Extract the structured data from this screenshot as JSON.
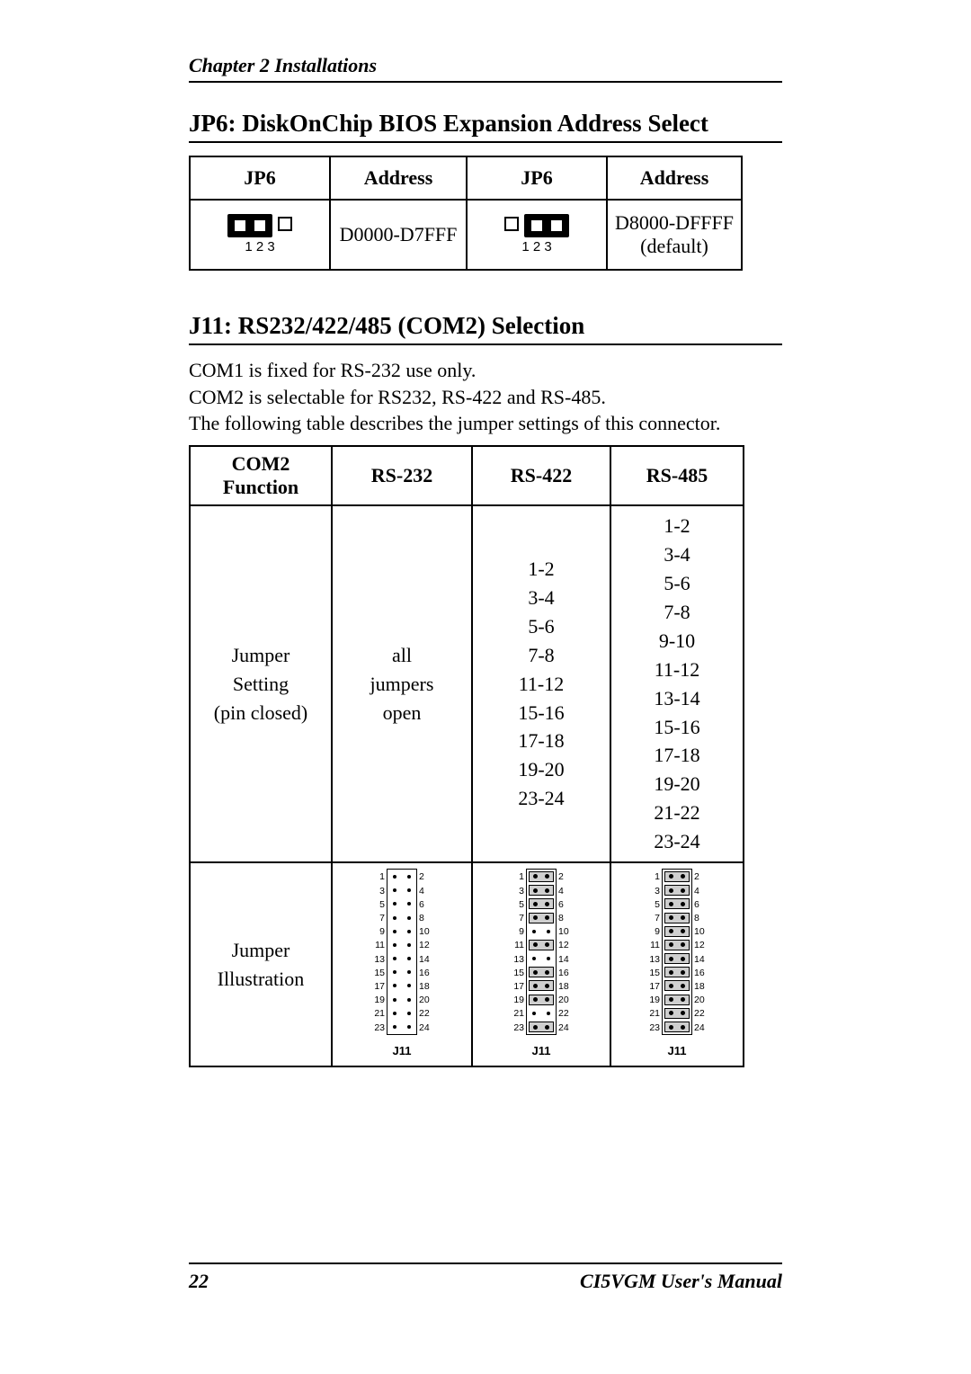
{
  "header": {
    "chapter": "Chapter 2  Installations"
  },
  "footer": {
    "page_number": "22",
    "manual": "CI5VGM User's Manual"
  },
  "jp6": {
    "title": "JP6: DiskOnChip BIOS Expansion Address Select",
    "headers": [
      "JP6",
      "Address",
      "JP6",
      "Address"
    ],
    "rows": [
      {
        "pins": "1  2  3",
        "cap_on": [
          1,
          2
        ],
        "address": "D0000-D7FFF",
        "pins2": "1  2  3",
        "cap_on2": [
          2,
          3
        ],
        "address2_line1": "D8000-DFFFF",
        "address2_line2": "(default)"
      }
    ],
    "border_color": "#000000",
    "font_size_header": 22,
    "font_size_cell": 22
  },
  "j11": {
    "title": "J11: RS232/422/485 (COM2) Selection",
    "intro_lines": [
      "COM1 is fixed for RS-232 use only.",
      "COM2 is selectable for RS232, RS-422 and RS-485.",
      "The following table describes the jumper settings of this connector."
    ],
    "headers": {
      "col1_line1": "COM2",
      "col1_line2": "Function",
      "col2": "RS-232",
      "col3": "RS-422",
      "col4": "RS-485"
    },
    "row_setting": {
      "label_line1": "Jumper",
      "label_line2": "Setting",
      "label_line3": "(pin closed)",
      "rs232_line1": "all",
      "rs232_line2": "jumpers",
      "rs232_line3": "open",
      "rs422_lines": [
        "1-2",
        "3-4",
        "5-6",
        "7-8",
        "11-12",
        "15-16",
        "17-18",
        "19-20",
        "23-24"
      ],
      "rs485_lines": [
        "1-2",
        "3-4",
        "5-6",
        "7-8",
        "9-10",
        "11-12",
        "13-14",
        "15-16",
        "17-18",
        "19-20",
        "21-22",
        "23-24"
      ]
    },
    "row_illustration": {
      "label_line1": "Jumper",
      "label_line2": "Illustration",
      "diagram_label": "J11",
      "pins_per_side": 12,
      "closed_pairs": {
        "rs232": [],
        "rs422": [
          [
            1,
            2
          ],
          [
            3,
            4
          ],
          [
            5,
            6
          ],
          [
            7,
            8
          ],
          [
            11,
            12
          ],
          [
            15,
            16
          ],
          [
            17,
            18
          ],
          [
            19,
            20
          ],
          [
            23,
            24
          ]
        ],
        "rs485": [
          [
            1,
            2
          ],
          [
            3,
            4
          ],
          [
            5,
            6
          ],
          [
            7,
            8
          ],
          [
            9,
            10
          ],
          [
            11,
            12
          ],
          [
            13,
            14
          ],
          [
            15,
            16
          ],
          [
            17,
            18
          ],
          [
            19,
            20
          ],
          [
            21,
            22
          ],
          [
            23,
            24
          ]
        ]
      }
    },
    "colors": {
      "border": "#000000",
      "shade": "#cfcfcf",
      "background": "#ffffff"
    }
  }
}
